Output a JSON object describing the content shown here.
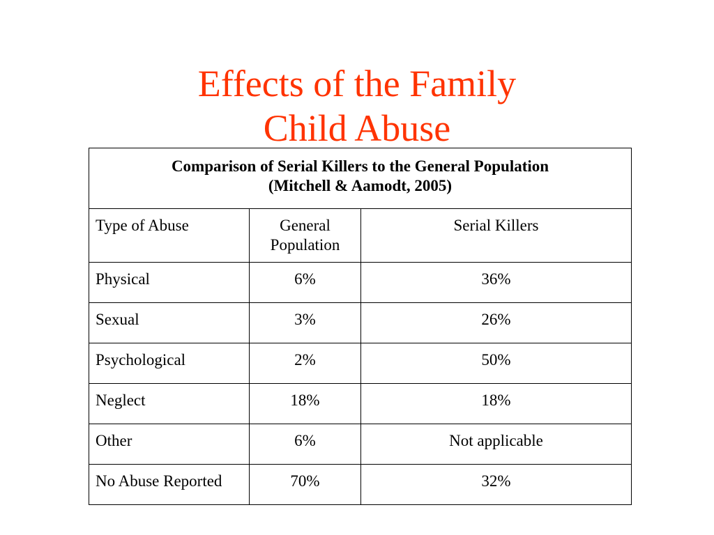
{
  "title": {
    "line1": "Effects of the Family",
    "line2": "Child Abuse",
    "color": "#ff3300"
  },
  "table": {
    "caption_line1": "Comparison of Serial Killers to the General Population",
    "caption_line2": "(Mitchell & Aamodt, 2005)",
    "headers": [
      "Type of Abuse",
      "General Population",
      "Serial Killers"
    ],
    "rows": [
      {
        "type": "Physical",
        "general": "6%",
        "serial": "36%"
      },
      {
        "type": "Sexual",
        "general": "3%",
        "serial": "26%"
      },
      {
        "type": "Psychological",
        "general": "2%",
        "serial": "50%"
      },
      {
        "type": "Neglect",
        "general": "18%",
        "serial": "18%"
      },
      {
        "type": "Other",
        "general": "6%",
        "serial": "Not applicable"
      },
      {
        "type": "No Abuse Reported",
        "general": "70%",
        "serial": "32%"
      }
    ]
  }
}
